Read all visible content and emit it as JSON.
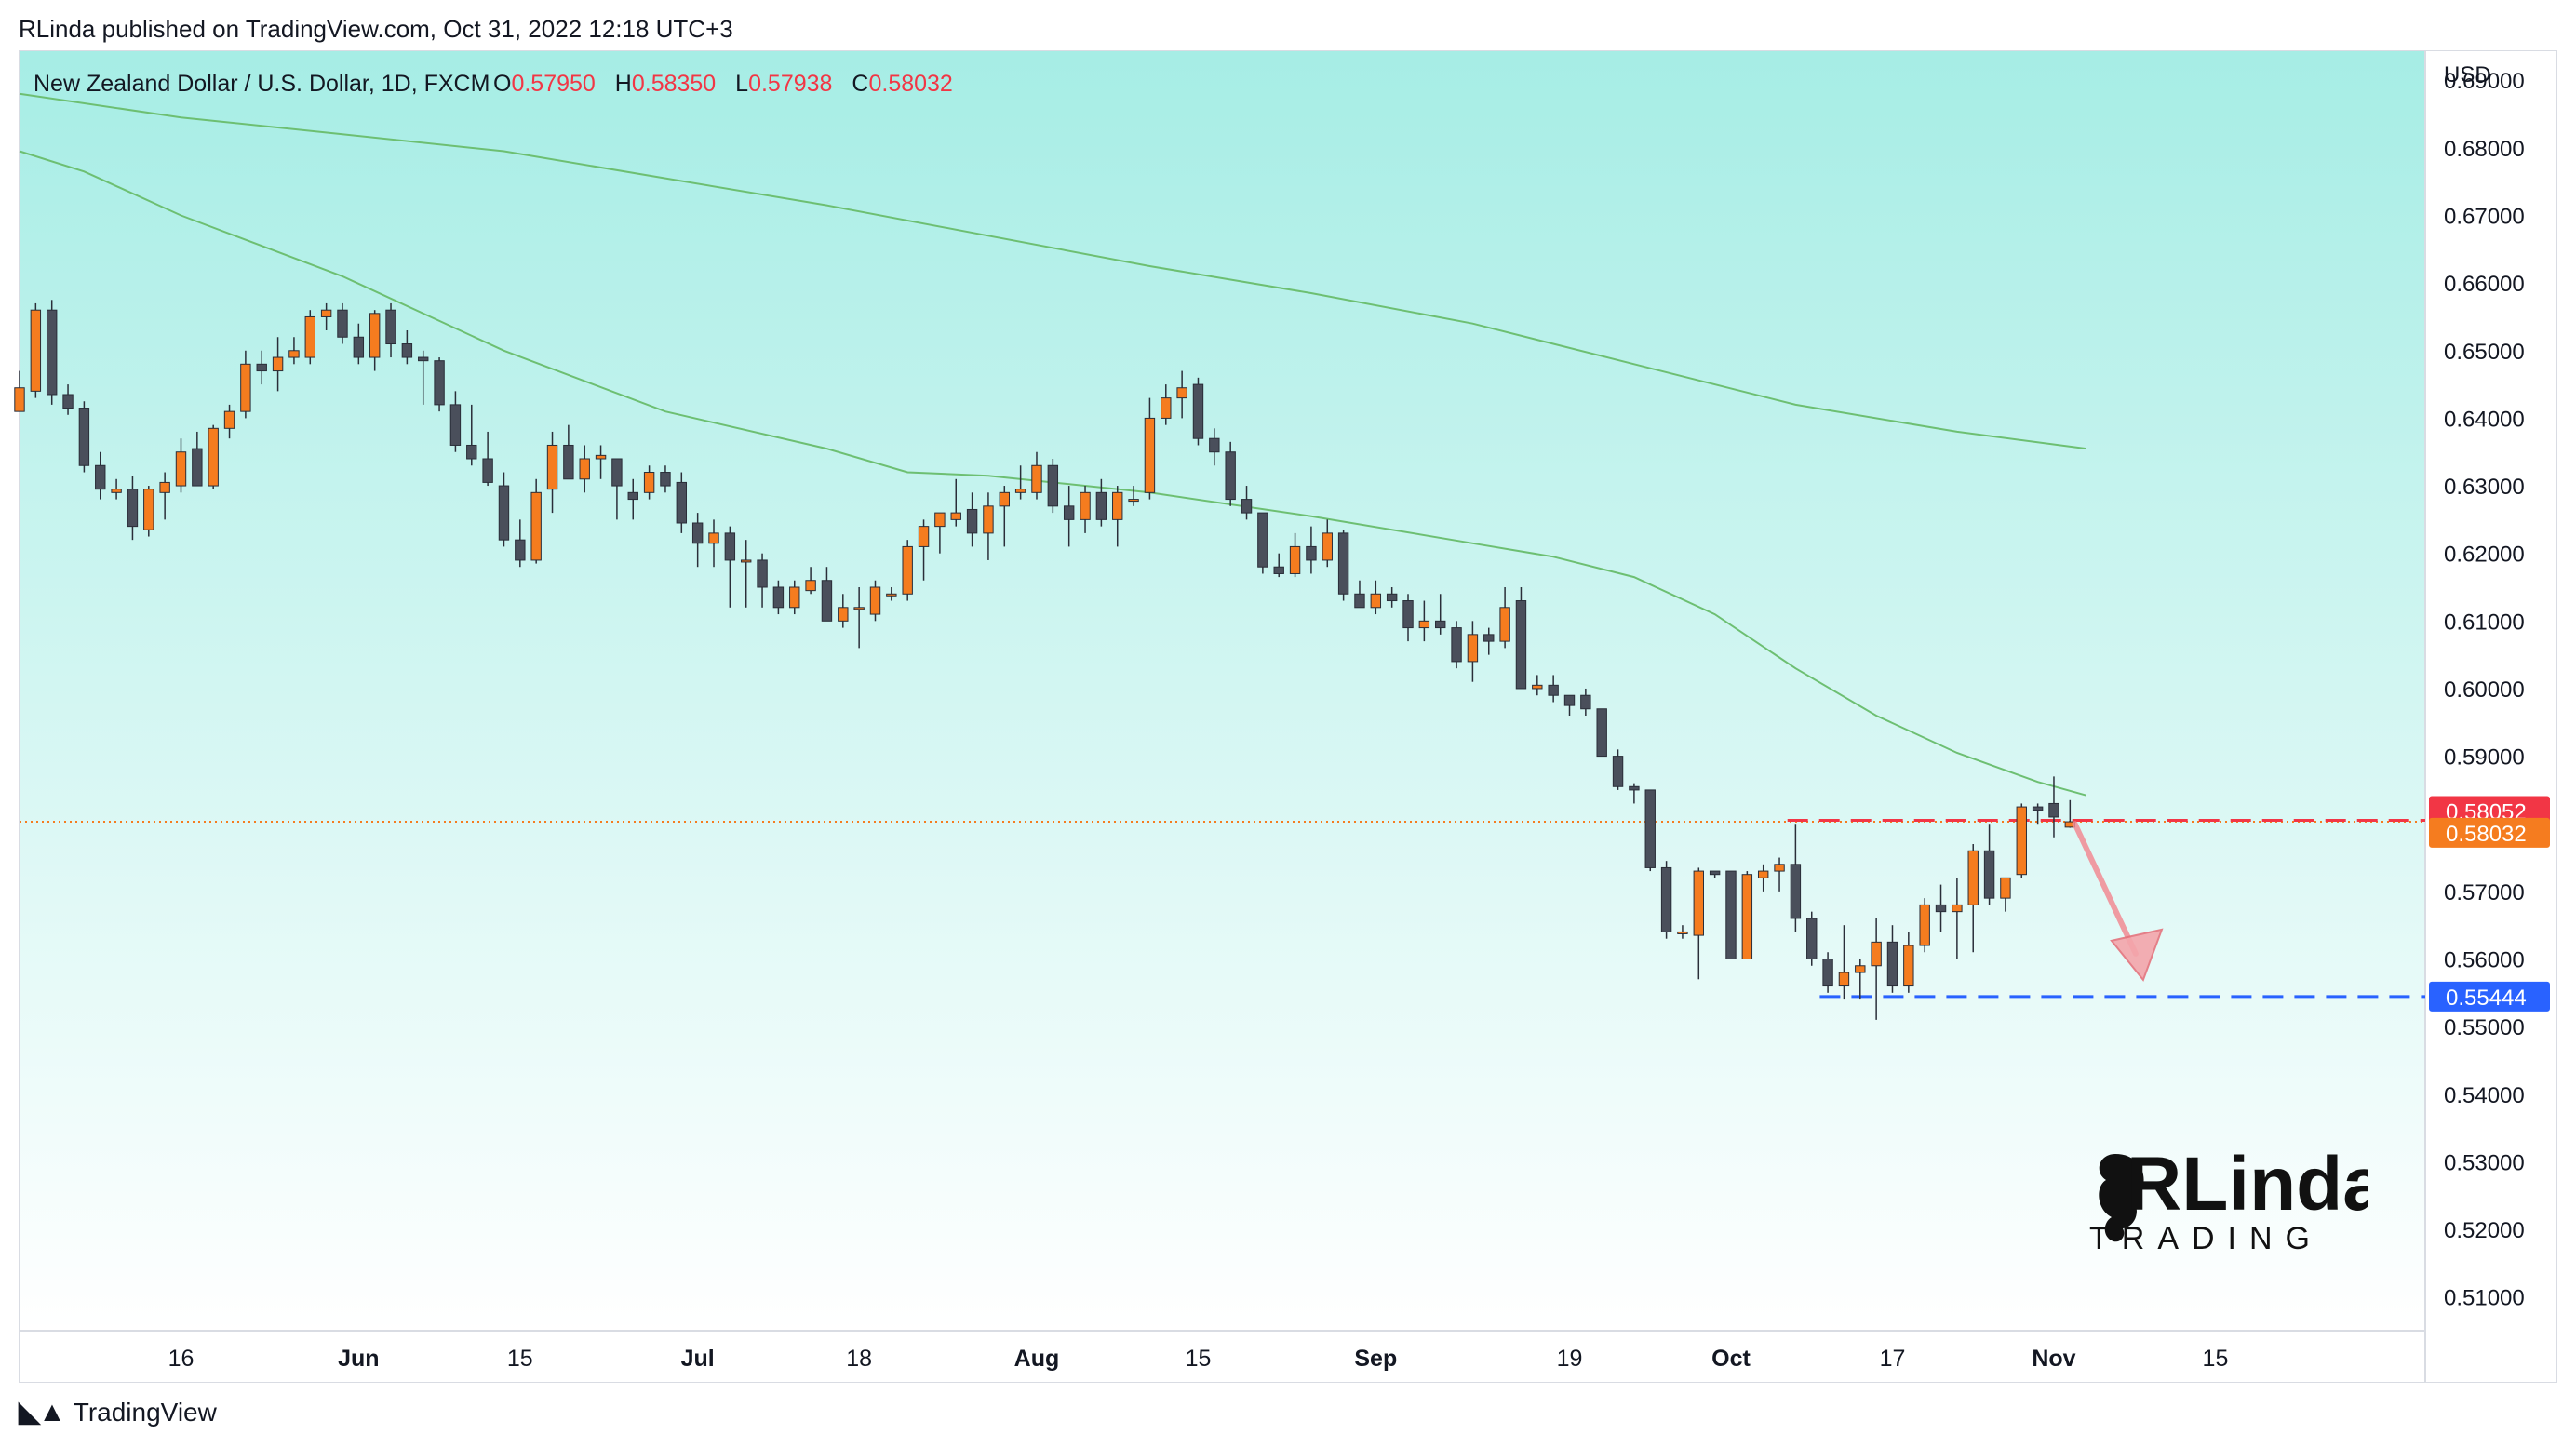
{
  "header": {
    "published": "RLinda published on TradingView.com, Oct 31, 2022 12:18 UTC+3"
  },
  "footer": {
    "brand": "TradingView"
  },
  "legend": {
    "symbol": "New Zealand Dollar / U.S. Dollar, 1D, FXCM",
    "o_label": "O",
    "o_value": "0.57950",
    "h_label": "H",
    "h_value": "0.58350",
    "l_label": "L",
    "l_value": "0.57938",
    "c_label": "C",
    "c_value": "0.58032"
  },
  "colors": {
    "up": "#f57c1f",
    "down": "#4a4f5b",
    "ma": "#6dbf72",
    "target_line": "#2962ff",
    "resistance_line": "#f23645",
    "price_line": "#f57c1f",
    "bg_top": "#a9eee6",
    "bg_bottom": "#ffffff"
  },
  "watermark": {
    "brand": "RLinda",
    "sub": "TRADING"
  },
  "chart_data": {
    "type": "candlestick",
    "currency": "USD",
    "ylim": [
      0.505,
      0.6943
    ],
    "y_ticks": [
      "0.69000",
      "0.68000",
      "0.67000",
      "0.66000",
      "0.65000",
      "0.64000",
      "0.63000",
      "0.62000",
      "0.61000",
      "0.60000",
      "0.59000",
      "0.58000",
      "0.57000",
      "0.56000",
      "0.55000",
      "0.54000",
      "0.53000",
      "0.52000",
      "0.51000"
    ],
    "x_ticks": [
      {
        "day": 10,
        "label": "16"
      },
      {
        "day": 21,
        "label": "Jun"
      },
      {
        "day": 31,
        "label": "15"
      },
      {
        "day": 42,
        "label": "Jul"
      },
      {
        "day": 52,
        "label": "18"
      },
      {
        "day": 63,
        "label": "Aug"
      },
      {
        "day": 73,
        "label": "15"
      },
      {
        "day": 84,
        "label": "Sep"
      },
      {
        "day": 96,
        "label": "19"
      },
      {
        "day": 106,
        "label": "Oct"
      },
      {
        "day": 116,
        "label": "17"
      },
      {
        "day": 126,
        "label": "Nov"
      },
      {
        "day": 136,
        "label": "15"
      }
    ],
    "xlim": [
      0,
      149
    ],
    "price_labels": [
      {
        "value": 0.58052,
        "text": "0.58052",
        "color": "#f23645"
      },
      {
        "value": 0.58032,
        "text": "0.58032",
        "color": "#f57c1f"
      },
      {
        "value": 0.55444,
        "text": "0.55444",
        "color": "#2962ff"
      }
    ],
    "resistance": 0.58052,
    "target": 0.55444,
    "ma_fast": [
      [
        0,
        0.6795
      ],
      [
        4,
        0.6765
      ],
      [
        10,
        0.67
      ],
      [
        20,
        0.661
      ],
      [
        30,
        0.65
      ],
      [
        40,
        0.641
      ],
      [
        50,
        0.6355
      ],
      [
        55,
        0.632
      ],
      [
        60,
        0.6315
      ],
      [
        70,
        0.629
      ],
      [
        80,
        0.6255
      ],
      [
        90,
        0.6215
      ],
      [
        95,
        0.6195
      ],
      [
        100,
        0.6165
      ],
      [
        105,
        0.611
      ],
      [
        110,
        0.603
      ],
      [
        115,
        0.596
      ],
      [
        120,
        0.5905
      ],
      [
        125,
        0.5862
      ],
      [
        128,
        0.5842
      ]
    ],
    "ma_slow": [
      [
        0,
        0.688
      ],
      [
        10,
        0.6845
      ],
      [
        20,
        0.682
      ],
      [
        30,
        0.6795
      ],
      [
        40,
        0.6755
      ],
      [
        50,
        0.6715
      ],
      [
        60,
        0.667
      ],
      [
        70,
        0.6625
      ],
      [
        80,
        0.6585
      ],
      [
        90,
        0.654
      ],
      [
        100,
        0.648
      ],
      [
        110,
        0.642
      ],
      [
        120,
        0.638
      ],
      [
        128,
        0.6355
      ]
    ],
    "candles": [
      [
        0,
        0.641,
        0.647,
        0.6415,
        0.6445
      ],
      [
        1,
        0.644,
        0.657,
        0.643,
        0.656
      ],
      [
        2,
        0.656,
        0.6575,
        0.642,
        0.6435
      ],
      [
        3,
        0.6435,
        0.645,
        0.6405,
        0.6415
      ],
      [
        4,
        0.6415,
        0.6425,
        0.632,
        0.633
      ],
      [
        5,
        0.633,
        0.635,
        0.628,
        0.6295
      ],
      [
        6,
        0.629,
        0.631,
        0.628,
        0.6295
      ],
      [
        7,
        0.6295,
        0.6315,
        0.622,
        0.624
      ],
      [
        8,
        0.6235,
        0.63,
        0.6225,
        0.6295
      ],
      [
        9,
        0.629,
        0.632,
        0.625,
        0.6305
      ],
      [
        10,
        0.63,
        0.637,
        0.629,
        0.635
      ],
      [
        11,
        0.6355,
        0.638,
        0.63,
        0.63
      ],
      [
        12,
        0.63,
        0.639,
        0.6295,
        0.6385
      ],
      [
        13,
        0.6385,
        0.642,
        0.637,
        0.641
      ],
      [
        14,
        0.641,
        0.65,
        0.64,
        0.648
      ],
      [
        15,
        0.648,
        0.65,
        0.645,
        0.647
      ],
      [
        16,
        0.647,
        0.652,
        0.644,
        0.649
      ],
      [
        17,
        0.649,
        0.652,
        0.648,
        0.65
      ],
      [
        18,
        0.649,
        0.656,
        0.648,
        0.655
      ],
      [
        19,
        0.655,
        0.657,
        0.653,
        0.656
      ],
      [
        20,
        0.656,
        0.657,
        0.651,
        0.652
      ],
      [
        21,
        0.652,
        0.654,
        0.648,
        0.649
      ],
      [
        22,
        0.649,
        0.656,
        0.647,
        0.6555
      ],
      [
        23,
        0.656,
        0.657,
        0.649,
        0.651
      ],
      [
        24,
        0.651,
        0.653,
        0.648,
        0.649
      ],
      [
        25,
        0.649,
        0.65,
        0.642,
        0.6485
      ],
      [
        26,
        0.6485,
        0.649,
        0.641,
        0.642
      ],
      [
        27,
        0.642,
        0.644,
        0.635,
        0.636
      ],
      [
        28,
        0.636,
        0.642,
        0.633,
        0.634
      ],
      [
        29,
        0.634,
        0.638,
        0.63,
        0.6305
      ],
      [
        30,
        0.63,
        0.632,
        0.621,
        0.622
      ],
      [
        31,
        0.622,
        0.625,
        0.618,
        0.619
      ],
      [
        32,
        0.619,
        0.631,
        0.6185,
        0.629
      ],
      [
        33,
        0.6295,
        0.638,
        0.626,
        0.636
      ],
      [
        34,
        0.636,
        0.639,
        0.631,
        0.631
      ],
      [
        35,
        0.631,
        0.636,
        0.629,
        0.634
      ],
      [
        36,
        0.634,
        0.636,
        0.631,
        0.6345
      ],
      [
        37,
        0.634,
        0.634,
        0.625,
        0.63
      ],
      [
        38,
        0.629,
        0.631,
        0.625,
        0.628
      ],
      [
        39,
        0.629,
        0.633,
        0.628,
        0.632
      ],
      [
        40,
        0.632,
        0.633,
        0.629,
        0.63
      ],
      [
        41,
        0.6305,
        0.632,
        0.623,
        0.6245
      ],
      [
        42,
        0.6245,
        0.626,
        0.618,
        0.6215
      ],
      [
        43,
        0.6215,
        0.625,
        0.618,
        0.623
      ],
      [
        44,
        0.623,
        0.624,
        0.612,
        0.619
      ],
      [
        45,
        0.619,
        0.622,
        0.612,
        0.619
      ],
      [
        46,
        0.619,
        0.62,
        0.612,
        0.615
      ],
      [
        47,
        0.615,
        0.616,
        0.611,
        0.612
      ],
      [
        48,
        0.612,
        0.616,
        0.611,
        0.615
      ],
      [
        49,
        0.6145,
        0.618,
        0.614,
        0.616
      ],
      [
        50,
        0.616,
        0.618,
        0.61,
        0.61
      ],
      [
        51,
        0.61,
        0.614,
        0.609,
        0.612
      ],
      [
        52,
        0.612,
        0.615,
        0.606,
        0.612
      ],
      [
        53,
        0.611,
        0.616,
        0.61,
        0.615
      ],
      [
        54,
        0.614,
        0.615,
        0.613,
        0.614
      ],
      [
        55,
        0.614,
        0.622,
        0.613,
        0.621
      ],
      [
        56,
        0.621,
        0.625,
        0.616,
        0.624
      ],
      [
        57,
        0.624,
        0.626,
        0.62,
        0.626
      ],
      [
        58,
        0.625,
        0.631,
        0.624,
        0.626
      ],
      [
        59,
        0.6265,
        0.629,
        0.621,
        0.623
      ],
      [
        60,
        0.623,
        0.629,
        0.619,
        0.627
      ],
      [
        61,
        0.627,
        0.63,
        0.621,
        0.629
      ],
      [
        62,
        0.629,
        0.633,
        0.628,
        0.6295
      ],
      [
        63,
        0.629,
        0.635,
        0.628,
        0.633
      ],
      [
        64,
        0.633,
        0.634,
        0.626,
        0.627
      ],
      [
        65,
        0.627,
        0.63,
        0.621,
        0.625
      ],
      [
        66,
        0.625,
        0.63,
        0.623,
        0.629
      ],
      [
        67,
        0.629,
        0.631,
        0.624,
        0.625
      ],
      [
        68,
        0.625,
        0.63,
        0.621,
        0.629
      ],
      [
        69,
        0.628,
        0.63,
        0.627,
        0.628
      ],
      [
        70,
        0.629,
        0.643,
        0.628,
        0.64
      ],
      [
        71,
        0.64,
        0.645,
        0.639,
        0.643
      ],
      [
        72,
        0.643,
        0.647,
        0.64,
        0.6445
      ],
      [
        73,
        0.645,
        0.646,
        0.636,
        0.637
      ],
      [
        74,
        0.637,
        0.6385,
        0.633,
        0.635
      ],
      [
        75,
        0.635,
        0.6365,
        0.627,
        0.628
      ],
      [
        76,
        0.628,
        0.63,
        0.625,
        0.626
      ],
      [
        77,
        0.626,
        0.626,
        0.617,
        0.618
      ],
      [
        78,
        0.618,
        0.62,
        0.6165,
        0.617
      ],
      [
        79,
        0.617,
        0.623,
        0.6165,
        0.621
      ],
      [
        80,
        0.621,
        0.624,
        0.617,
        0.619
      ],
      [
        81,
        0.619,
        0.625,
        0.618,
        0.623
      ],
      [
        82,
        0.623,
        0.6235,
        0.613,
        0.614
      ],
      [
        83,
        0.614,
        0.616,
        0.612,
        0.612
      ],
      [
        84,
        0.612,
        0.616,
        0.611,
        0.614
      ],
      [
        85,
        0.614,
        0.615,
        0.612,
        0.613
      ],
      [
        86,
        0.613,
        0.614,
        0.607,
        0.609
      ],
      [
        87,
        0.609,
        0.613,
        0.607,
        0.61
      ],
      [
        88,
        0.61,
        0.614,
        0.608,
        0.609
      ],
      [
        89,
        0.609,
        0.61,
        0.603,
        0.604
      ],
      [
        90,
        0.604,
        0.61,
        0.601,
        0.608
      ],
      [
        91,
        0.608,
        0.609,
        0.605,
        0.607
      ],
      [
        92,
        0.607,
        0.615,
        0.606,
        0.612
      ],
      [
        93,
        0.613,
        0.615,
        0.6,
        0.6
      ],
      [
        94,
        0.6,
        0.602,
        0.599,
        0.6005
      ],
      [
        95,
        0.6005,
        0.602,
        0.598,
        0.599
      ],
      [
        96,
        0.599,
        0.599,
        0.596,
        0.5975
      ],
      [
        97,
        0.599,
        0.6,
        0.596,
        0.597
      ],
      [
        98,
        0.597,
        0.597,
        0.59,
        0.59
      ],
      [
        99,
        0.59,
        0.591,
        0.585,
        0.5855
      ],
      [
        100,
        0.5855,
        0.586,
        0.583,
        0.585
      ],
      [
        101,
        0.585,
        0.585,
        0.573,
        0.5735
      ],
      [
        102,
        0.5735,
        0.5745,
        0.563,
        0.564
      ],
      [
        103,
        0.564,
        0.565,
        0.563,
        0.564
      ],
      [
        104,
        0.5635,
        0.5735,
        0.557,
        0.573
      ],
      [
        105,
        0.573,
        0.573,
        0.572,
        0.5725
      ],
      [
        106,
        0.573,
        0.573,
        0.56,
        0.56
      ],
      [
        107,
        0.56,
        0.573,
        0.56,
        0.5725
      ],
      [
        108,
        0.572,
        0.574,
        0.57,
        0.573
      ],
      [
        109,
        0.573,
        0.575,
        0.57,
        0.574
      ],
      [
        110,
        0.574,
        0.58,
        0.564,
        0.566
      ],
      [
        111,
        0.566,
        0.567,
        0.559,
        0.56
      ],
      [
        112,
        0.56,
        0.561,
        0.555,
        0.556
      ],
      [
        113,
        0.556,
        0.565,
        0.554,
        0.558
      ],
      [
        114,
        0.558,
        0.56,
        0.554,
        0.559
      ],
      [
        115,
        0.559,
        0.566,
        0.551,
        0.5625
      ],
      [
        116,
        0.5625,
        0.565,
        0.555,
        0.556
      ],
      [
        117,
        0.556,
        0.564,
        0.555,
        0.562
      ],
      [
        118,
        0.562,
        0.569,
        0.561,
        0.568
      ],
      [
        119,
        0.568,
        0.571,
        0.564,
        0.567
      ],
      [
        120,
        0.567,
        0.572,
        0.56,
        0.568
      ],
      [
        121,
        0.568,
        0.577,
        0.561,
        0.576
      ],
      [
        122,
        0.576,
        0.58,
        0.568,
        0.569
      ],
      [
        123,
        0.569,
        0.572,
        0.567,
        0.572
      ],
      [
        124,
        0.5725,
        0.583,
        0.572,
        0.5825
      ],
      [
        125,
        0.5825,
        0.583,
        0.58,
        0.582
      ],
      [
        126,
        0.583,
        0.587,
        0.578,
        0.581
      ],
      [
        127,
        0.5795,
        0.5835,
        0.5794,
        0.5803
      ]
    ]
  }
}
